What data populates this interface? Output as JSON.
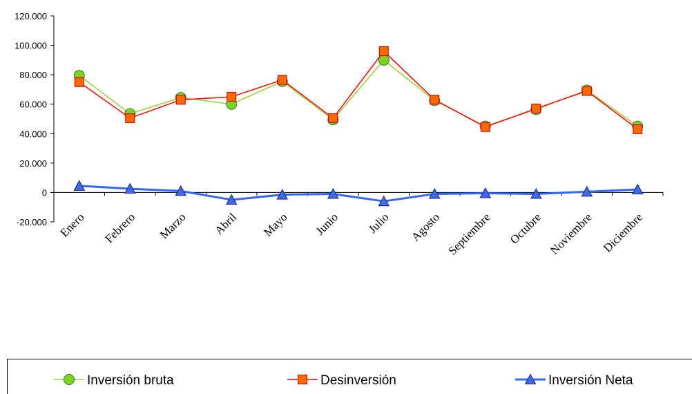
{
  "chart_data": {
    "type": "line",
    "categories": [
      "Enero",
      "Febrero",
      "Marzo",
      "Abril",
      "Mayo",
      "Junio",
      "Julio",
      "Agosto",
      "Septiembre",
      "Octubre",
      "Noviembre",
      "Diciembre"
    ],
    "series": [
      {
        "name": "Inversión bruta",
        "values": [
          79500,
          53500,
          64500,
          60000,
          75500,
          49500,
          90000,
          62500,
          45000,
          56500,
          69500,
          45000
        ],
        "line_color": "#9acd32",
        "marker": "circle",
        "marker_fill": "#7ed321",
        "marker_stroke": "#2e7d32"
      },
      {
        "name": "Desinversión",
        "values": [
          75000,
          50500,
          63000,
          65000,
          76500,
          50500,
          96000,
          63000,
          44500,
          57000,
          69000,
          43000
        ],
        "line_color": "#ff0000",
        "marker": "square",
        "marker_fill": "#ff6a00",
        "marker_stroke": "#c00000"
      },
      {
        "name": "Inversión Neta",
        "values": [
          4500,
          2500,
          1000,
          -5000,
          -1500,
          -1000,
          -6000,
          -1000,
          -500,
          -1000,
          500,
          2000
        ],
        "line_color": "#3366ff",
        "marker": "triangle",
        "marker_fill": "#4169e1",
        "marker_stroke": "#1a237e"
      }
    ],
    "y_ticks": [
      "120.000",
      "100.000",
      "80.000",
      "60.000",
      "40.000",
      "20.000",
      "0",
      "-20.000"
    ],
    "ylim": [
      -20000,
      120000
    ],
    "grid": false,
    "legend_position": "bottom"
  }
}
